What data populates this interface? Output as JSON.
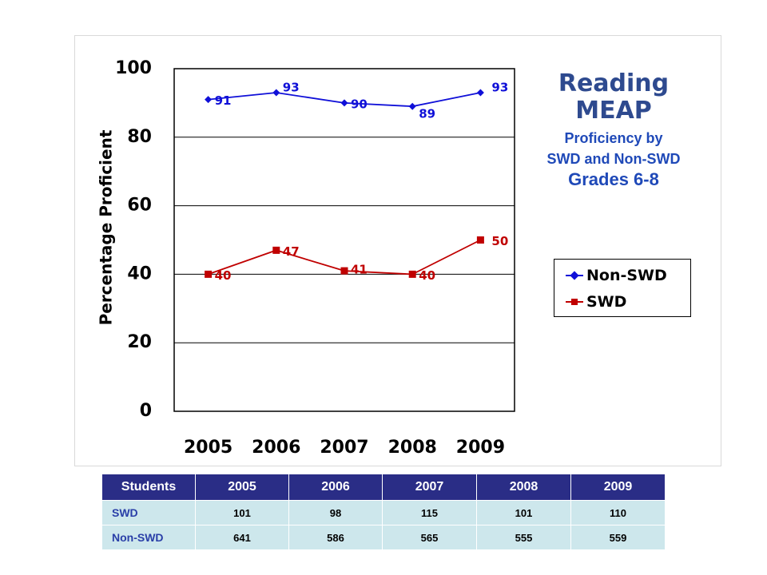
{
  "chart_data": {
    "type": "line",
    "title": "Reading MEAP",
    "title_lines": [
      "Reading",
      "MEAP"
    ],
    "subtitle_lines": [
      "Proficiency by",
      "SWD and Non-SWD"
    ],
    "grade_text": "Grades 6-8",
    "xlabel": "",
    "ylabel": "Percentage Proficient",
    "categories": [
      "2005",
      "2006",
      "2007",
      "2008",
      "2009"
    ],
    "ylim": [
      0,
      100
    ],
    "yticks": [
      0,
      20,
      40,
      60,
      80,
      100
    ],
    "grid": true,
    "legend_position": "right",
    "series": [
      {
        "name": "Non-SWD",
        "values": [
          91,
          93,
          90,
          89,
          93
        ],
        "color": "#1010d8",
        "marker": "diamond"
      },
      {
        "name": "SWD",
        "values": [
          40,
          47,
          41,
          40,
          50
        ],
        "color": "#c00000",
        "marker": "square"
      }
    ]
  },
  "table": {
    "headers": [
      "Students",
      "2005",
      "2006",
      "2007",
      "2008",
      "2009"
    ],
    "rows": [
      {
        "label": "SWD",
        "values": [
          "101",
          "98",
          "115",
          "101",
          "110"
        ]
      },
      {
        "label": "Non-SWD",
        "values": [
          "641",
          "586",
          "565",
          "555",
          "559"
        ]
      }
    ]
  },
  "colors": {
    "title": "#2e4a8f",
    "subtitle": "#1f49b8",
    "table_header_bg": "#2a2d86",
    "table_cell_bg": "#cde7ec"
  }
}
